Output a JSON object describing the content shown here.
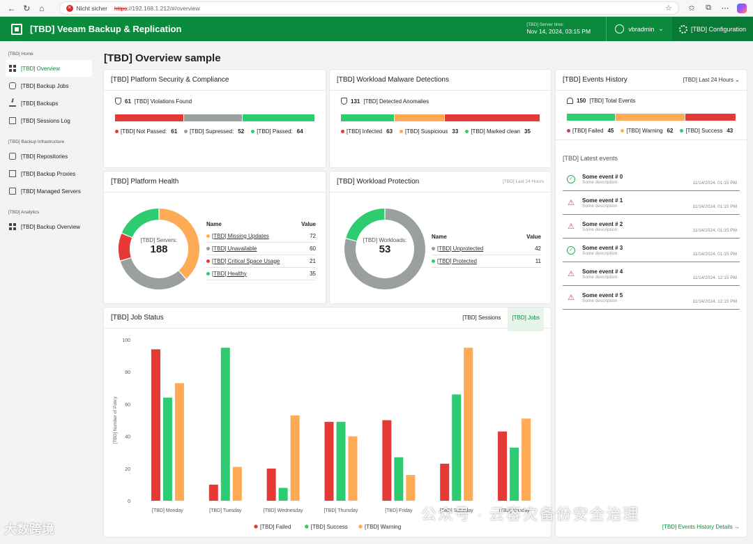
{
  "browser": {
    "security_label": "Nicht sicher",
    "url_scheme": "https",
    "url_rest": "://192.168.1.212/#/overview"
  },
  "header": {
    "app_title": "[TBD] Veeam Backup & Replication",
    "server_time_label": "[TBD] Server time:",
    "server_time_value": "Nov 14, 2024, 03:15 PM",
    "user": "vbradmin",
    "config_label": "[TBD] Configuration",
    "accent_color": "#0b8a3e"
  },
  "sidebar": {
    "sections": [
      {
        "title": "[TBD] Home",
        "items": [
          {
            "label": "[TBD] Overview",
            "icon": "grid-icon",
            "active": true
          },
          {
            "label": "[TBD] Backup Jobs",
            "icon": "link-icon"
          },
          {
            "label": "[TBD] Backups",
            "icon": "download-icon"
          },
          {
            "label": "[TBD] Sessions Log",
            "icon": "document-icon"
          }
        ]
      },
      {
        "title": "[TBD] Backup Infrastructure",
        "items": [
          {
            "label": "[TBD] Repositories",
            "icon": "database-icon"
          },
          {
            "label": "[TBD] Backup Proxies",
            "icon": "proxy-icon"
          },
          {
            "label": "[TBD] Managed Servers",
            "icon": "server-icon"
          }
        ]
      },
      {
        "title": "[TBD] Analytics",
        "items": [
          {
            "label": "[TBD] Backup Overview",
            "icon": "dashboard-icon"
          }
        ]
      }
    ]
  },
  "page": {
    "title": "[TBD] Overview sample"
  },
  "security": {
    "title": "[TBD] Platform Security & Compliance",
    "summary_count": "61",
    "summary_text": "[TBD] Violations Found",
    "bar": [
      {
        "value": 61,
        "color": "#e53935"
      },
      {
        "value": 52,
        "color": "#9aa0a0"
      },
      {
        "value": 64,
        "color": "#2ecc71"
      }
    ],
    "legend": [
      {
        "label": "[TBD] Not Passed:",
        "value": "61",
        "color": "#e53935"
      },
      {
        "label": "[TBD] Supressed:",
        "value": "52",
        "color": "#9aa0a0"
      },
      {
        "label": "[TBD] Passed:",
        "value": "64",
        "color": "#2ecc71"
      }
    ]
  },
  "malware": {
    "title": "[TBD] Workload Malware Detections",
    "summary_count": "131",
    "summary_text": "[TBD] Detected Anomalies",
    "bar": [
      {
        "value": 35,
        "color": "#2ecc71"
      },
      {
        "value": 33,
        "color": "#ffaa55"
      },
      {
        "value": 63,
        "color": "#e53935"
      }
    ],
    "legend": [
      {
        "label": "[TBD] Infected",
        "value": "63",
        "color": "#e53935"
      },
      {
        "label": "[TBD] Suspicious",
        "value": "33",
        "color": "#ffaa55"
      },
      {
        "label": "[TBD] Marked clean",
        "value": "35",
        "color": "#2ecc71"
      }
    ]
  },
  "events_history": {
    "title": "[TBD] Events History",
    "range": "[TBD] Last 24 Hours",
    "summary_count": "150",
    "summary_text": "[TBD] Total Events",
    "bar": [
      {
        "value": 43,
        "color": "#2ecc71"
      },
      {
        "value": 62,
        "color": "#ffaa55"
      },
      {
        "value": 45,
        "color": "#e53935"
      }
    ],
    "legend": [
      {
        "label": "[TBD] Failed",
        "value": "45",
        "color": "#e53935"
      },
      {
        "label": "[TBD] Warning",
        "value": "62",
        "color": "#ffaa55"
      },
      {
        "label": "[TBD] Success",
        "value": "43",
        "color": "#2ecc71"
      }
    ],
    "latest_title": "[TBD] Latest events",
    "events": [
      {
        "name": "Some event # 0",
        "desc": "Some description",
        "time": "11/14/2024, 01:15 PM",
        "status": "success"
      },
      {
        "name": "Some event # 1",
        "desc": "Some description",
        "time": "11/14/2024, 01:15 PM",
        "status": "warning"
      },
      {
        "name": "Some event # 2",
        "desc": "Some description",
        "time": "11/14/2024, 01:15 PM",
        "status": "warning"
      },
      {
        "name": "Some event # 3",
        "desc": "Some description",
        "time": "11/14/2024, 01:15 PM",
        "status": "success"
      },
      {
        "name": "Some event # 4",
        "desc": "Some description",
        "time": "11/14/2024, 12:15 PM",
        "status": "warning"
      },
      {
        "name": "Some event # 5",
        "desc": "Some description",
        "time": "11/14/2024, 12:15 PM",
        "status": "warning"
      }
    ],
    "details_link": "[TBD] Events History Details →"
  },
  "platform_health": {
    "title": "[TBD] Platform Health",
    "center_label": "[TBD] Servers:",
    "center_value": "188",
    "col_name": "Name",
    "col_value": "Value",
    "rows": [
      {
        "name": "[TBD] Missing Updates",
        "value": 72,
        "color": "#ffaa55"
      },
      {
        "name": "[TBD] Unavailable",
        "value": 60,
        "color": "#9aa0a0"
      },
      {
        "name": "[TBD] Critical Space Usage",
        "value": 21,
        "color": "#e53935"
      },
      {
        "name": "[TBD] Healthy",
        "value": 35,
        "color": "#2ecc71"
      }
    ]
  },
  "workload_protection": {
    "title": "[TBD] Workload Protection",
    "range": "[TBD] Last 24 Hours",
    "center_label": "[TBD] Workloads:",
    "center_value": "53",
    "col_name": "Name",
    "col_value": "Value",
    "rows": [
      {
        "name": "[TBD] Unprotected",
        "value": 42,
        "color": "#9aa0a0"
      },
      {
        "name": "[TBD] Protected",
        "value": 11,
        "color": "#2ecc71"
      }
    ]
  },
  "job_status": {
    "title": "[TBD] Job Status",
    "toggle": [
      "[TBD] Sessions",
      "[TBD] Jobs"
    ],
    "toggle_active": 1
  },
  "chart_data": {
    "type": "bar",
    "title": "",
    "xlabel": "",
    "ylabel": "[TBD] Number of Policy",
    "ylim": [
      0,
      100
    ],
    "yticks": [
      0,
      20,
      40,
      60,
      80,
      100
    ],
    "grid": false,
    "legend_position": "bottom",
    "categories": [
      "[TBD] Monday",
      "[TBD] Tuesday",
      "[TBD] Wednesday",
      "[TBD] Thursday",
      "[TBD] Friday",
      "[TBD] Saturday",
      "[TBD] Sunday"
    ],
    "series": [
      {
        "name": "[TBD] Failed",
        "color": "#e53935",
        "values": [
          94,
          10,
          20,
          49,
          50,
          23,
          43
        ]
      },
      {
        "name": "[TBD] Success",
        "color": "#2ecc71",
        "values": [
          64,
          95,
          8,
          49,
          27,
          66,
          33
        ]
      },
      {
        "name": "[TBD] Warning",
        "color": "#ffaa55",
        "values": [
          73,
          21,
          53,
          40,
          16,
          95,
          51
        ]
      }
    ]
  },
  "watermark": {
    "left": "大数跨境",
    "right": "公众号 · 云容灾备份安全治理"
  }
}
